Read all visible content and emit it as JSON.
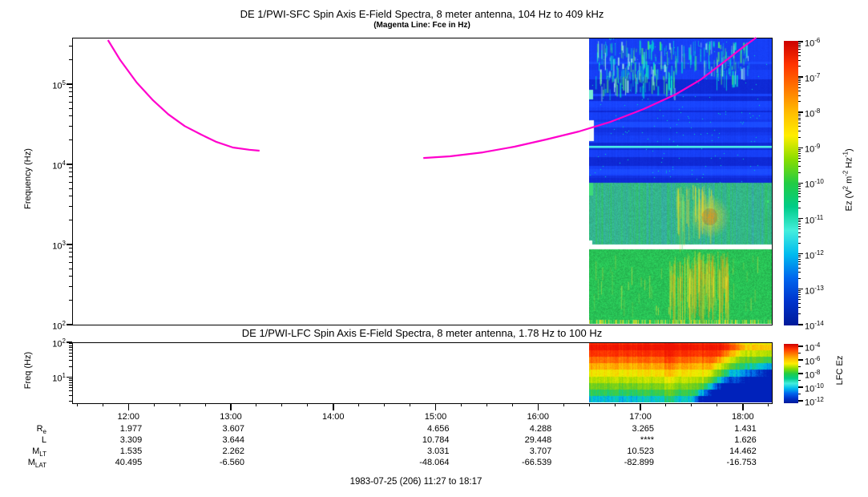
{
  "figure": {
    "background": "#ffffff",
    "footer": "1983-07-25 (206) 11:27 to 18:17"
  },
  "chart_data": [
    {
      "type": "heatmap",
      "panel": "SFC",
      "title": "DE 1/PWI-SFC  Spin Axis E-Field Spectra, 8 meter antenna, 104 Hz to 409 kHz",
      "subtitle": "(Magenta Line: Fce in Hz)",
      "ylabel": "Frequency (Hz)",
      "y_scale": "log",
      "y_range_hz": [
        100,
        409000
      ],
      "y_tick_exponents": [
        2,
        3,
        4,
        5
      ],
      "x_start": "11:27",
      "x_end": "18:17",
      "x_tick_labels": [
        "12:00",
        "13:00",
        "14:00",
        "15:00",
        "16:00",
        "17:00",
        "18:00"
      ],
      "x_minor_tick_minutes": 15,
      "grid": false,
      "colorbar": {
        "label": "Ez (V^2 m^-2 Hz^-1)",
        "tick_exponents": [
          -6,
          -7,
          -8,
          -9,
          -10,
          -11,
          -12,
          -13,
          -14
        ],
        "orientation": "vertical",
        "palette": "rainbow"
      },
      "data_window": {
        "start": "16:30",
        "end": "18:17"
      },
      "features": [
        {
          "name": "broadband-blue-background",
          "freq_hz": [
            6000,
            409000
          ],
          "level_exp": -13
        },
        {
          "name": "upper-cyan-hiss-streaks",
          "time": [
            "16:31",
            "17:10"
          ],
          "freq_hz": [
            40000,
            380000
          ]
        },
        {
          "name": "upper-cyan-streak-cluster",
          "time": [
            "17:20",
            "17:45"
          ],
          "freq_hz": [
            120000,
            380000
          ]
        },
        {
          "name": "narrowband-cyan-line",
          "freq_hz": [
            16500,
            17500
          ],
          "level_exp": -11
        },
        {
          "name": "mid-band-emission",
          "freq_hz": [
            1000,
            6000
          ],
          "level_exp": -11
        },
        {
          "name": "mid-band-hot-blob",
          "time": [
            "17:30",
            "17:50"
          ],
          "freq_hz": [
            1200,
            3500
          ],
          "level_exp": -9
        },
        {
          "name": "white-data-gap",
          "freq_hz": [
            870,
            1000
          ]
        },
        {
          "name": "low-band-emission",
          "freq_hz": [
            104,
            870
          ],
          "level_exp": -10.5
        },
        {
          "name": "low-band-warm-streaks",
          "time": [
            "17:05",
            "17:50"
          ],
          "freq_hz": [
            104,
            870
          ],
          "level_exp": -9.5
        }
      ],
      "fce_line": {
        "color": "#ff00cc",
        "label": "Fce",
        "segments_time_hz": [
          [
            [
              11.8,
              355000
            ],
            [
              11.92,
              200000
            ],
            [
              12.08,
              105000
            ],
            [
              12.24,
              63000
            ],
            [
              12.39,
              42000
            ],
            [
              12.55,
              30000
            ],
            [
              12.71,
              23500
            ],
            [
              12.86,
              19000
            ],
            [
              13.02,
              16200
            ],
            [
              13.18,
              15200
            ],
            [
              13.28,
              14800
            ]
          ],
          [
            [
              14.88,
              12000
            ],
            [
              15.14,
              12600
            ],
            [
              15.46,
              14100
            ],
            [
              15.77,
              16600
            ],
            [
              16.08,
              20400
            ],
            [
              16.4,
              25700
            ],
            [
              16.71,
              34000
            ],
            [
              17.03,
              48900
            ],
            [
              17.34,
              74100
            ],
            [
              17.58,
              112000
            ],
            [
              17.81,
              186000
            ],
            [
              18.01,
              295000
            ],
            [
              18.13,
              380000
            ]
          ]
        ]
      }
    },
    {
      "type": "heatmap",
      "panel": "LFC",
      "title": "DE 1/PWI-LFC  Spin Axis E-Field Spectra, 8 meter antenna, 1.78 Hz to 100 Hz",
      "ylabel": "Freq (Hz)",
      "y_scale": "log",
      "y_range_hz": [
        1.78,
        100
      ],
      "y_tick_exponents": [
        1,
        2
      ],
      "colorbar": {
        "label": "LFC Ez",
        "tick_exponents": [
          -4,
          -6,
          -8,
          -10,
          -12
        ],
        "orientation": "vertical",
        "palette": "rainbow"
      },
      "data_window": {
        "start": "16:30",
        "end": "18:17"
      },
      "features": [
        {
          "name": "intense-low-frequency-band",
          "freq_hz": [
            1.78,
            6
          ],
          "level_exp": -5
        },
        {
          "name": "banded-spectrum-decreasing-with-frequency",
          "freq_hz": [
            1.78,
            100
          ]
        },
        {
          "name": "spectrum-weakens-after",
          "time": [
            "17:20",
            "18:17"
          ]
        },
        {
          "name": "top-right-cold-region",
          "time": [
            "17:45",
            "18:17"
          ],
          "freq_hz": [
            30,
            100
          ],
          "level_exp": -12
        }
      ]
    }
  ],
  "axis_table": {
    "time_labels": [
      "12:00",
      "13:00",
      "14:00",
      "15:00",
      "16:00",
      "17:00",
      "18:00"
    ],
    "rows": [
      {
        "label": "R",
        "sub": "e",
        "values": [
          "1.977",
          "3.607",
          "",
          "4.656",
          "4.288",
          "3.265",
          "1.431"
        ]
      },
      {
        "label": "L",
        "sub": "",
        "values": [
          "3.309",
          "3.644",
          "",
          "10.784",
          "29.448",
          "****",
          "1.626"
        ]
      },
      {
        "label": "M",
        "sub": "LT",
        "values": [
          "1.535",
          "2.262",
          "",
          "3.031",
          "3.707",
          "10.523",
          "14.462"
        ]
      },
      {
        "label": "M",
        "sub": "LAT",
        "values": [
          "40.495",
          "-6.560",
          "",
          "-48.064",
          "-66.539",
          "-82.899",
          "-16.753"
        ]
      }
    ]
  },
  "colors": {
    "fce_line": "#ff00cc",
    "axis": "#000000",
    "background": "#ffffff",
    "rainbow_top_to_bottom": [
      "#cc0000",
      "#ff3300",
      "#ff7700",
      "#ffbb00",
      "#ffee00",
      "#88dd00",
      "#22cc44",
      "#00cc88",
      "#44eedd",
      "#00bbee",
      "#0066ee",
      "#0033cc",
      "#001a99"
    ]
  }
}
